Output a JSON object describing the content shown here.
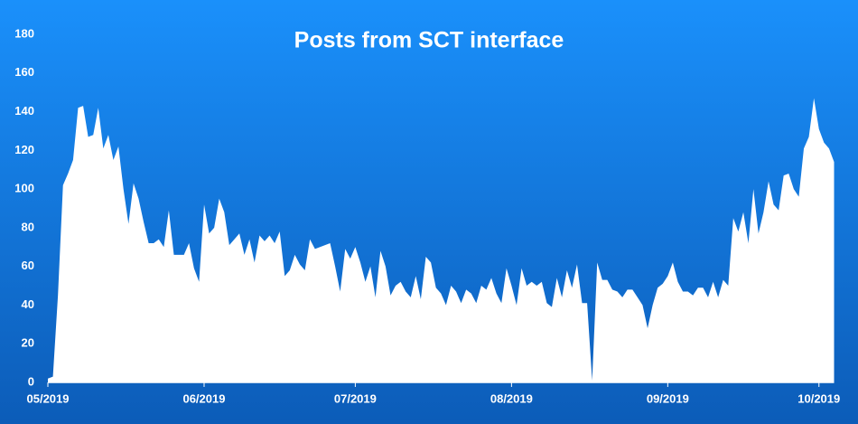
{
  "chart_data": {
    "type": "area",
    "title": "Posts from SCT interface",
    "categories": [
      "05/2019",
      null,
      null,
      null,
      null,
      null,
      null,
      null,
      null,
      null,
      null,
      null,
      null,
      null,
      null,
      null,
      null,
      null,
      null,
      null,
      null,
      null,
      null,
      null,
      null,
      null,
      null,
      null,
      null,
      null,
      null,
      "06/2019",
      null,
      null,
      null,
      null,
      null,
      null,
      null,
      null,
      null,
      null,
      null,
      null,
      null,
      null,
      null,
      null,
      null,
      null,
      null,
      null,
      null,
      null,
      null,
      null,
      null,
      null,
      null,
      null,
      null,
      "07/2019",
      null,
      null,
      null,
      null,
      null,
      null,
      null,
      null,
      null,
      null,
      null,
      null,
      null,
      null,
      null,
      null,
      null,
      null,
      null,
      null,
      null,
      null,
      null,
      null,
      null,
      null,
      null,
      null,
      null,
      null,
      "08/2019",
      null,
      null,
      null,
      null,
      null,
      null,
      null,
      null,
      null,
      null,
      null,
      null,
      null,
      null,
      null,
      null,
      null,
      null,
      null,
      null,
      null,
      null,
      null,
      null,
      null,
      null,
      null,
      null,
      null,
      null,
      "09/2019",
      null,
      null,
      null,
      null,
      null,
      null,
      null,
      null,
      null,
      null,
      null,
      null,
      null,
      null,
      null,
      null,
      null,
      null,
      null,
      null,
      null,
      null,
      null,
      null,
      null,
      null,
      null,
      null,
      null,
      "10/2019",
      null,
      null,
      null
    ],
    "values": [
      2,
      3,
      45,
      102,
      108,
      115,
      142,
      143,
      127,
      128,
      142,
      121,
      128,
      115,
      122,
      100,
      82,
      103,
      95,
      83,
      72,
      72,
      74,
      70,
      89,
      66,
      66,
      66,
      72,
      59,
      52,
      92,
      77,
      80,
      95,
      88,
      71,
      74,
      77,
      66,
      74,
      62,
      76,
      73,
      76,
      72,
      78,
      55,
      58,
      66,
      61,
      58,
      74,
      69,
      70,
      71,
      72,
      60,
      47,
      69,
      64,
      70,
      62,
      52,
      60,
      44,
      68,
      60,
      45,
      50,
      52,
      47,
      44,
      55,
      43,
      65,
      62,
      49,
      46,
      40,
      50,
      47,
      41,
      48,
      46,
      41,
      50,
      48,
      54,
      46,
      41,
      59,
      50,
      40,
      59,
      50,
      52,
      50,
      52,
      41,
      39,
      54,
      44,
      58,
      49,
      61,
      41,
      41,
      1,
      62,
      53,
      53,
      48,
      47,
      44,
      48,
      48,
      44,
      40,
      28,
      40,
      49,
      51,
      55,
      62,
      52,
      47,
      47,
      45,
      49,
      49,
      44,
      52,
      44,
      53,
      50,
      85,
      78,
      88,
      72,
      100,
      77,
      88,
      104,
      92,
      89,
      107,
      108,
      100,
      96,
      121,
      127,
      147,
      131,
      124,
      121,
      114
    ],
    "color": "#ffffff",
    "ylim": [
      0,
      180
    ],
    "yticks": [
      0,
      20,
      40,
      60,
      80,
      100,
      120,
      140,
      160,
      180
    ],
    "grid": false
  }
}
